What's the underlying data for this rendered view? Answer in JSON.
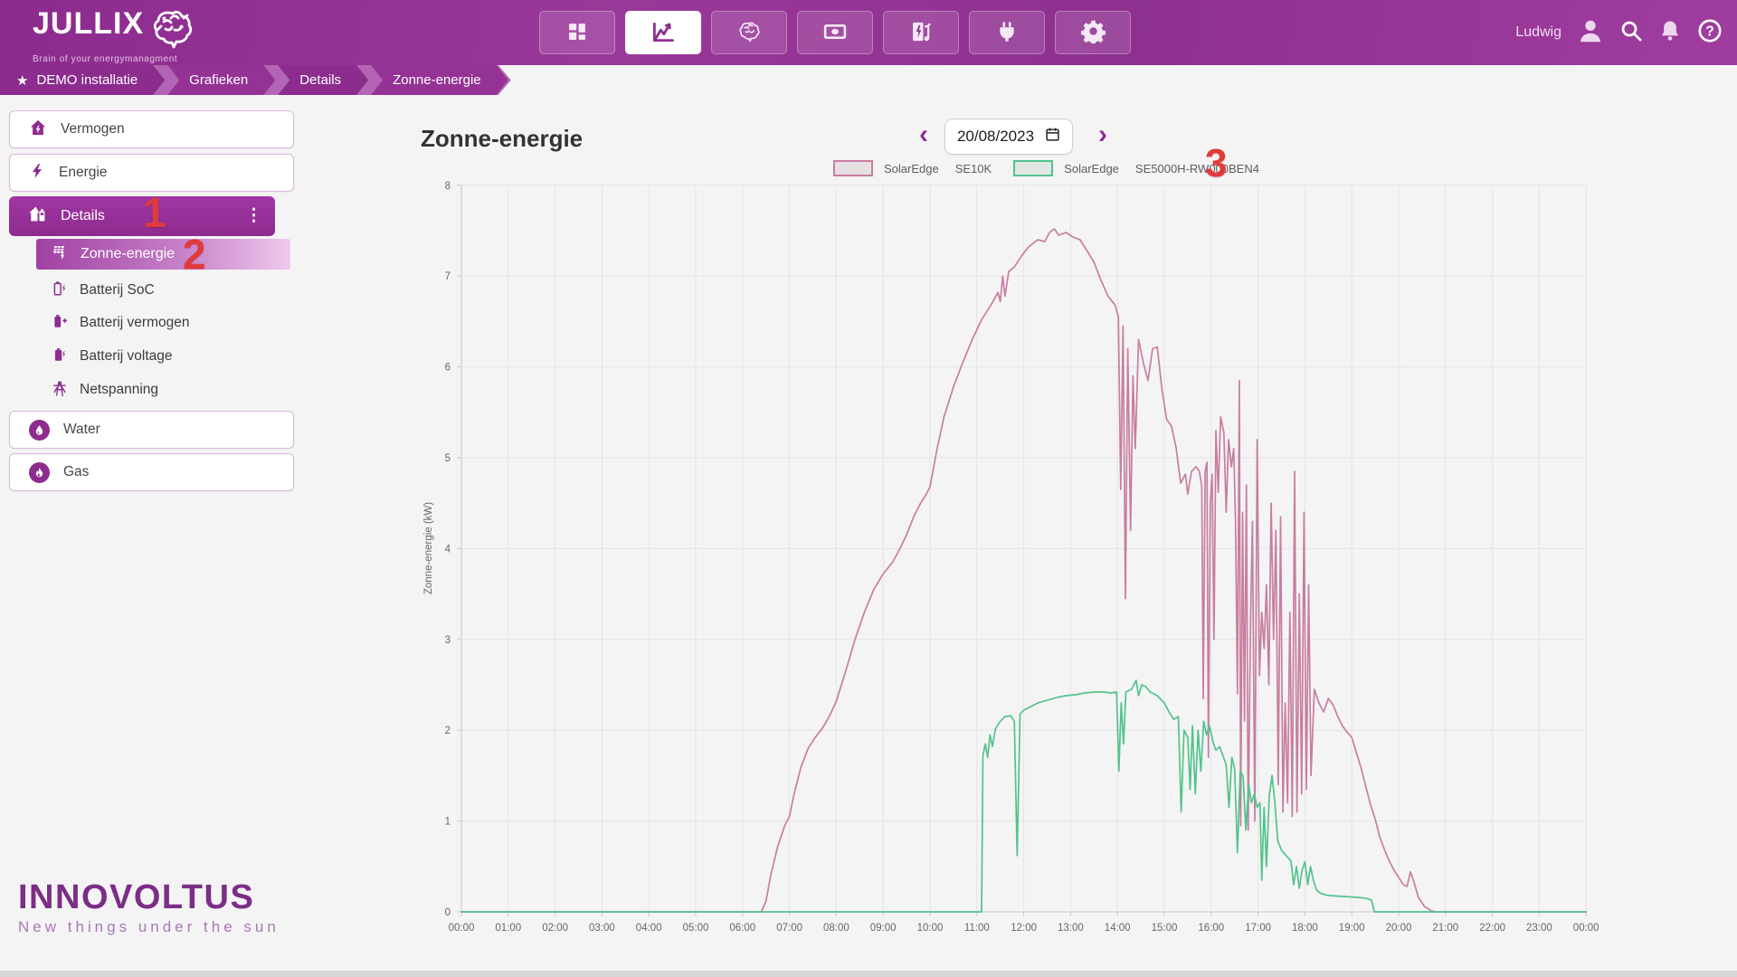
{
  "header": {
    "logo_title": "JULLIX",
    "logo_tagline": "Brain of your energymanagment",
    "user_name": "Ludwig"
  },
  "nav": {
    "items": [
      {
        "icon": "dashboard-grid",
        "active": false
      },
      {
        "icon": "line-chart",
        "active": true
      },
      {
        "icon": "brain",
        "active": false
      },
      {
        "icon": "money",
        "active": false
      },
      {
        "icon": "charging-station",
        "active": false
      },
      {
        "icon": "plug",
        "active": false
      },
      {
        "icon": "gear",
        "active": false
      }
    ]
  },
  "breadcrumb": {
    "items": [
      {
        "label": "DEMO installatie"
      },
      {
        "label": "Grafieken"
      },
      {
        "label": "Details"
      },
      {
        "label": "Zonne-energie"
      }
    ]
  },
  "sidebar": {
    "items": [
      {
        "label": "Vermogen"
      },
      {
        "label": "Energie"
      },
      {
        "label": "Details"
      },
      {
        "label": "Zonne-energie"
      },
      {
        "label": "Batterij SoC"
      },
      {
        "label": "Batterij vermogen"
      },
      {
        "label": "Batterij voltage"
      },
      {
        "label": "Netspanning"
      },
      {
        "label": "Water"
      },
      {
        "label": "Gas"
      }
    ]
  },
  "content": {
    "title": "Zonne-energie",
    "date_value": "20/08/2023",
    "prev_label": "‹",
    "next_label": "›"
  },
  "annotations": {
    "one": "1",
    "two": "2",
    "three": "3"
  },
  "footer": {
    "brand": "INNOVOLTUS",
    "tagline": "New things under the sun"
  },
  "colors": {
    "accent_purple": "#8e2e90",
    "series_pink": "#c87da0",
    "series_green": "#53c28c",
    "annotation_red": "#e13a3d"
  },
  "chart_data": {
    "type": "line",
    "title": "Zonne-energie",
    "ylabel": "Zonne-energie (kW)",
    "xlabel": "",
    "ylim": [
      0,
      8
    ],
    "xlim_hours": [
      0,
      24
    ],
    "grid": true,
    "legend_position": "top",
    "y_ticks": [
      0,
      1,
      2,
      3,
      4,
      5,
      6,
      7,
      8
    ],
    "x_ticks": [
      "00:00",
      "01:00",
      "02:00",
      "03:00",
      "04:00",
      "05:00",
      "06:00",
      "07:00",
      "08:00",
      "09:00",
      "10:00",
      "11:00",
      "12:00",
      "13:00",
      "14:00",
      "15:00",
      "16:00",
      "17:00",
      "18:00",
      "19:00",
      "20:00",
      "21:00",
      "22:00",
      "23:00",
      "00:00"
    ],
    "legend": [
      {
        "brand": "SolarEdge",
        "model": "SE10K"
      },
      {
        "brand": "SolarEdge",
        "model": "SE5000H-RW000BEN4"
      }
    ],
    "series": [
      {
        "name": "SolarEdge SE10K",
        "color": "#c87da0",
        "swatch_fill": "#e6e0e3",
        "points": [
          [
            0,
            0
          ],
          [
            6.4,
            0
          ],
          [
            6.5,
            0.12
          ],
          [
            6.6,
            0.4
          ],
          [
            6.75,
            0.72
          ],
          [
            6.9,
            0.95
          ],
          [
            7.0,
            1.05
          ],
          [
            7.1,
            1.3
          ],
          [
            7.25,
            1.6
          ],
          [
            7.4,
            1.8
          ],
          [
            7.55,
            1.92
          ],
          [
            7.7,
            2.02
          ],
          [
            7.85,
            2.15
          ],
          [
            8.0,
            2.32
          ],
          [
            8.2,
            2.65
          ],
          [
            8.4,
            3.0
          ],
          [
            8.6,
            3.3
          ],
          [
            8.8,
            3.55
          ],
          [
            9.0,
            3.72
          ],
          [
            9.2,
            3.85
          ],
          [
            9.36,
            4.0
          ],
          [
            9.5,
            4.15
          ],
          [
            9.65,
            4.35
          ],
          [
            9.8,
            4.5
          ],
          [
            9.9,
            4.58
          ],
          [
            10.0,
            4.68
          ],
          [
            10.15,
            5.1
          ],
          [
            10.3,
            5.45
          ],
          [
            10.5,
            5.78
          ],
          [
            10.7,
            6.05
          ],
          [
            10.9,
            6.3
          ],
          [
            11.1,
            6.52
          ],
          [
            11.3,
            6.68
          ],
          [
            11.45,
            6.82
          ],
          [
            11.5,
            6.72
          ],
          [
            11.55,
            7.0
          ],
          [
            11.6,
            6.78
          ],
          [
            11.68,
            7.05
          ],
          [
            11.8,
            7.1
          ],
          [
            11.95,
            7.22
          ],
          [
            12.1,
            7.32
          ],
          [
            12.3,
            7.4
          ],
          [
            12.45,
            7.38
          ],
          [
            12.55,
            7.48
          ],
          [
            12.65,
            7.52
          ],
          [
            12.75,
            7.45
          ],
          [
            12.9,
            7.48
          ],
          [
            13.05,
            7.43
          ],
          [
            13.2,
            7.4
          ],
          [
            13.35,
            7.28
          ],
          [
            13.5,
            7.15
          ],
          [
            13.65,
            6.95
          ],
          [
            13.8,
            6.78
          ],
          [
            13.95,
            6.68
          ],
          [
            14.02,
            6.55
          ],
          [
            14.07,
            4.65
          ],
          [
            14.12,
            6.45
          ],
          [
            14.17,
            3.45
          ],
          [
            14.22,
            6.2
          ],
          [
            14.28,
            4.2
          ],
          [
            14.33,
            5.9
          ],
          [
            14.38,
            5.1
          ],
          [
            14.45,
            6.3
          ],
          [
            14.55,
            6.05
          ],
          [
            14.65,
            5.85
          ],
          [
            14.75,
            6.2
          ],
          [
            14.85,
            6.22
          ],
          [
            14.95,
            5.75
          ],
          [
            15.05,
            5.42
          ],
          [
            15.15,
            5.35
          ],
          [
            15.25,
            5.12
          ],
          [
            15.35,
            4.72
          ],
          [
            15.45,
            4.82
          ],
          [
            15.5,
            4.6
          ],
          [
            15.58,
            4.85
          ],
          [
            15.68,
            4.9
          ],
          [
            15.75,
            4.85
          ],
          [
            15.8,
            4.68
          ],
          [
            15.83,
            2.35
          ],
          [
            15.87,
            4.85
          ],
          [
            15.91,
            4.95
          ],
          [
            15.94,
            1.7
          ],
          [
            15.98,
            4.5
          ],
          [
            16.02,
            4.82
          ],
          [
            16.06,
            3.0
          ],
          [
            16.1,
            5.3
          ],
          [
            16.15,
            4.62
          ],
          [
            16.2,
            5.45
          ],
          [
            16.27,
            5.28
          ],
          [
            16.32,
            4.4
          ],
          [
            16.37,
            5.2
          ],
          [
            16.43,
            4.9
          ],
          [
            16.48,
            5.1
          ],
          [
            16.52,
            4.3
          ],
          [
            16.56,
            2.4
          ],
          [
            16.6,
            5.85
          ],
          [
            16.63,
            0.95
          ],
          [
            16.67,
            4.4
          ],
          [
            16.71,
            2.1
          ],
          [
            16.75,
            4.7
          ],
          [
            16.79,
            0.9
          ],
          [
            16.84,
            3.2
          ],
          [
            16.88,
            4.3
          ],
          [
            16.93,
            1.0
          ],
          [
            16.98,
            5.2
          ],
          [
            17.03,
            2.6
          ],
          [
            17.08,
            3.3
          ],
          [
            17.13,
            2.9
          ],
          [
            17.18,
            3.6
          ],
          [
            17.23,
            2.5
          ],
          [
            17.28,
            4.5
          ],
          [
            17.33,
            3.0
          ],
          [
            17.38,
            4.2
          ],
          [
            17.43,
            1.4
          ],
          [
            17.48,
            4.35
          ],
          [
            17.53,
            1.1
          ],
          [
            17.58,
            2.3
          ],
          [
            17.63,
            1.2
          ],
          [
            17.68,
            3.3
          ],
          [
            17.73,
            1.05
          ],
          [
            17.78,
            4.85
          ],
          [
            17.83,
            1.1
          ],
          [
            17.88,
            3.5
          ],
          [
            17.93,
            1.3
          ],
          [
            17.98,
            4.4
          ],
          [
            18.03,
            1.35
          ],
          [
            18.08,
            3.6
          ],
          [
            18.13,
            1.5
          ],
          [
            18.2,
            2.45
          ],
          [
            18.3,
            2.3
          ],
          [
            18.4,
            2.2
          ],
          [
            18.5,
            2.35
          ],
          [
            18.6,
            2.28
          ],
          [
            18.7,
            2.15
          ],
          [
            18.8,
            2.05
          ],
          [
            18.9,
            1.98
          ],
          [
            19.0,
            1.92
          ],
          [
            19.1,
            1.75
          ],
          [
            19.2,
            1.58
          ],
          [
            19.3,
            1.38
          ],
          [
            19.4,
            1.18
          ],
          [
            19.5,
            1.02
          ],
          [
            19.6,
            0.82
          ],
          [
            19.7,
            0.68
          ],
          [
            19.8,
            0.56
          ],
          [
            19.9,
            0.46
          ],
          [
            20.0,
            0.38
          ],
          [
            20.1,
            0.3
          ],
          [
            20.18,
            0.28
          ],
          [
            20.25,
            0.44
          ],
          [
            20.32,
            0.34
          ],
          [
            20.42,
            0.16
          ],
          [
            20.55,
            0.06
          ],
          [
            20.7,
            0.01
          ],
          [
            20.8,
            0
          ],
          [
            24,
            0
          ]
        ]
      },
      {
        "name": "SolarEdge SE5000H-RW000BEN4",
        "color": "#53c28c",
        "swatch_fill": "#dfe7e2",
        "points": [
          [
            0,
            0
          ],
          [
            11.1,
            0
          ],
          [
            11.13,
            1.72
          ],
          [
            11.18,
            1.85
          ],
          [
            11.23,
            1.7
          ],
          [
            11.28,
            1.95
          ],
          [
            11.33,
            1.82
          ],
          [
            11.4,
            2.02
          ],
          [
            11.5,
            2.1
          ],
          [
            11.6,
            2.15
          ],
          [
            11.72,
            2.16
          ],
          [
            11.8,
            2.1
          ],
          [
            11.86,
            0.62
          ],
          [
            11.92,
            2.18
          ],
          [
            12.0,
            2.22
          ],
          [
            12.15,
            2.26
          ],
          [
            12.3,
            2.3
          ],
          [
            12.5,
            2.33
          ],
          [
            12.7,
            2.36
          ],
          [
            12.9,
            2.38
          ],
          [
            13.1,
            2.39
          ],
          [
            13.3,
            2.41
          ],
          [
            13.5,
            2.42
          ],
          [
            13.7,
            2.42
          ],
          [
            13.85,
            2.41
          ],
          [
            13.98,
            2.42
          ],
          [
            14.03,
            1.55
          ],
          [
            14.08,
            2.3
          ],
          [
            14.13,
            1.85
          ],
          [
            14.18,
            2.42
          ],
          [
            14.3,
            2.45
          ],
          [
            14.4,
            2.55
          ],
          [
            14.45,
            2.38
          ],
          [
            14.52,
            2.5
          ],
          [
            14.6,
            2.48
          ],
          [
            14.7,
            2.42
          ],
          [
            14.85,
            2.38
          ],
          [
            15.0,
            2.3
          ],
          [
            15.1,
            2.2
          ],
          [
            15.2,
            2.12
          ],
          [
            15.3,
            2.15
          ],
          [
            15.36,
            1.1
          ],
          [
            15.42,
            2.0
          ],
          [
            15.5,
            1.92
          ],
          [
            15.55,
            1.35
          ],
          [
            15.6,
            2.05
          ],
          [
            15.66,
            1.3
          ],
          [
            15.72,
            2.0
          ],
          [
            15.78,
            1.55
          ],
          [
            15.84,
            2.1
          ],
          [
            15.9,
            1.95
          ],
          [
            15.96,
            2.05
          ],
          [
            16.05,
            1.85
          ],
          [
            16.1,
            1.78
          ],
          [
            16.18,
            1.82
          ],
          [
            16.25,
            1.72
          ],
          [
            16.32,
            1.62
          ],
          [
            16.38,
            1.15
          ],
          [
            16.44,
            1.7
          ],
          [
            16.5,
            1.58
          ],
          [
            16.56,
            0.65
          ],
          [
            16.62,
            1.55
          ],
          [
            16.68,
            1.5
          ],
          [
            16.74,
            0.9
          ],
          [
            16.8,
            1.4
          ],
          [
            16.86,
            1.2
          ],
          [
            16.92,
            1.3
          ],
          [
            16.98,
            1.15
          ],
          [
            17.04,
            1.2
          ],
          [
            17.08,
            0.35
          ],
          [
            17.13,
            1.15
          ],
          [
            17.18,
            0.5
          ],
          [
            17.24,
            1.28
          ],
          [
            17.3,
            1.5
          ],
          [
            17.36,
            1.2
          ],
          [
            17.42,
            0.78
          ],
          [
            17.5,
            0.68
          ],
          [
            17.6,
            0.62
          ],
          [
            17.7,
            0.56
          ],
          [
            17.76,
            0.3
          ],
          [
            17.82,
            0.5
          ],
          [
            17.88,
            0.26
          ],
          [
            17.94,
            0.46
          ],
          [
            18.0,
            0.55
          ],
          [
            18.06,
            0.3
          ],
          [
            18.12,
            0.5
          ],
          [
            18.18,
            0.35
          ],
          [
            18.25,
            0.24
          ],
          [
            18.35,
            0.2
          ],
          [
            18.5,
            0.18
          ],
          [
            18.8,
            0.17
          ],
          [
            19.1,
            0.16
          ],
          [
            19.3,
            0.15
          ],
          [
            19.42,
            0.13
          ],
          [
            19.48,
            0
          ],
          [
            24,
            0
          ]
        ]
      }
    ]
  }
}
